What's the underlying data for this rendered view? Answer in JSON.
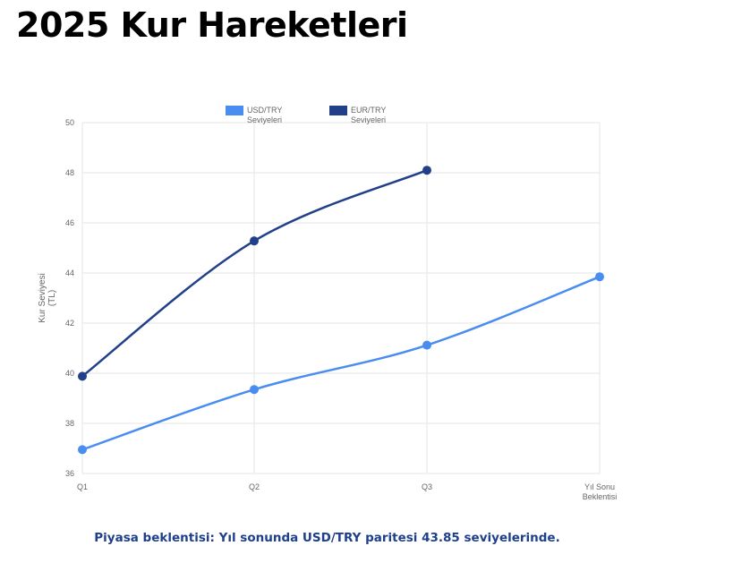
{
  "page": {
    "title": "2025 Kur Hareketleri",
    "footnote": "Piyasa beklentisi: Yıl sonunda USD/TRY paritesi 43.85 seviyelerinde."
  },
  "colors": {
    "usd": "#4a8df0",
    "eur": "#22408a",
    "grid": "#e6e6e6",
    "axis_text": "#666666",
    "footnote": "#1e3f8c"
  },
  "chart_data": {
    "type": "line",
    "categories": [
      "Q1",
      "Q2",
      "Q3",
      "Yıl Sonu Beklentisi"
    ],
    "series": [
      {
        "name": "USD/TRY Seviyeleri",
        "values": [
          36.95,
          39.35,
          41.12,
          43.85
        ]
      },
      {
        "name": "EUR/TRY Seviyeleri",
        "values": [
          39.88,
          45.28,
          48.1,
          null
        ]
      }
    ],
    "ylabel": "Kur Seviyesi (TL)",
    "ylim": [
      36,
      50
    ],
    "yticks": [
      36,
      38,
      40,
      42,
      44,
      46,
      48,
      50
    ],
    "grid": true,
    "legend": "top"
  }
}
